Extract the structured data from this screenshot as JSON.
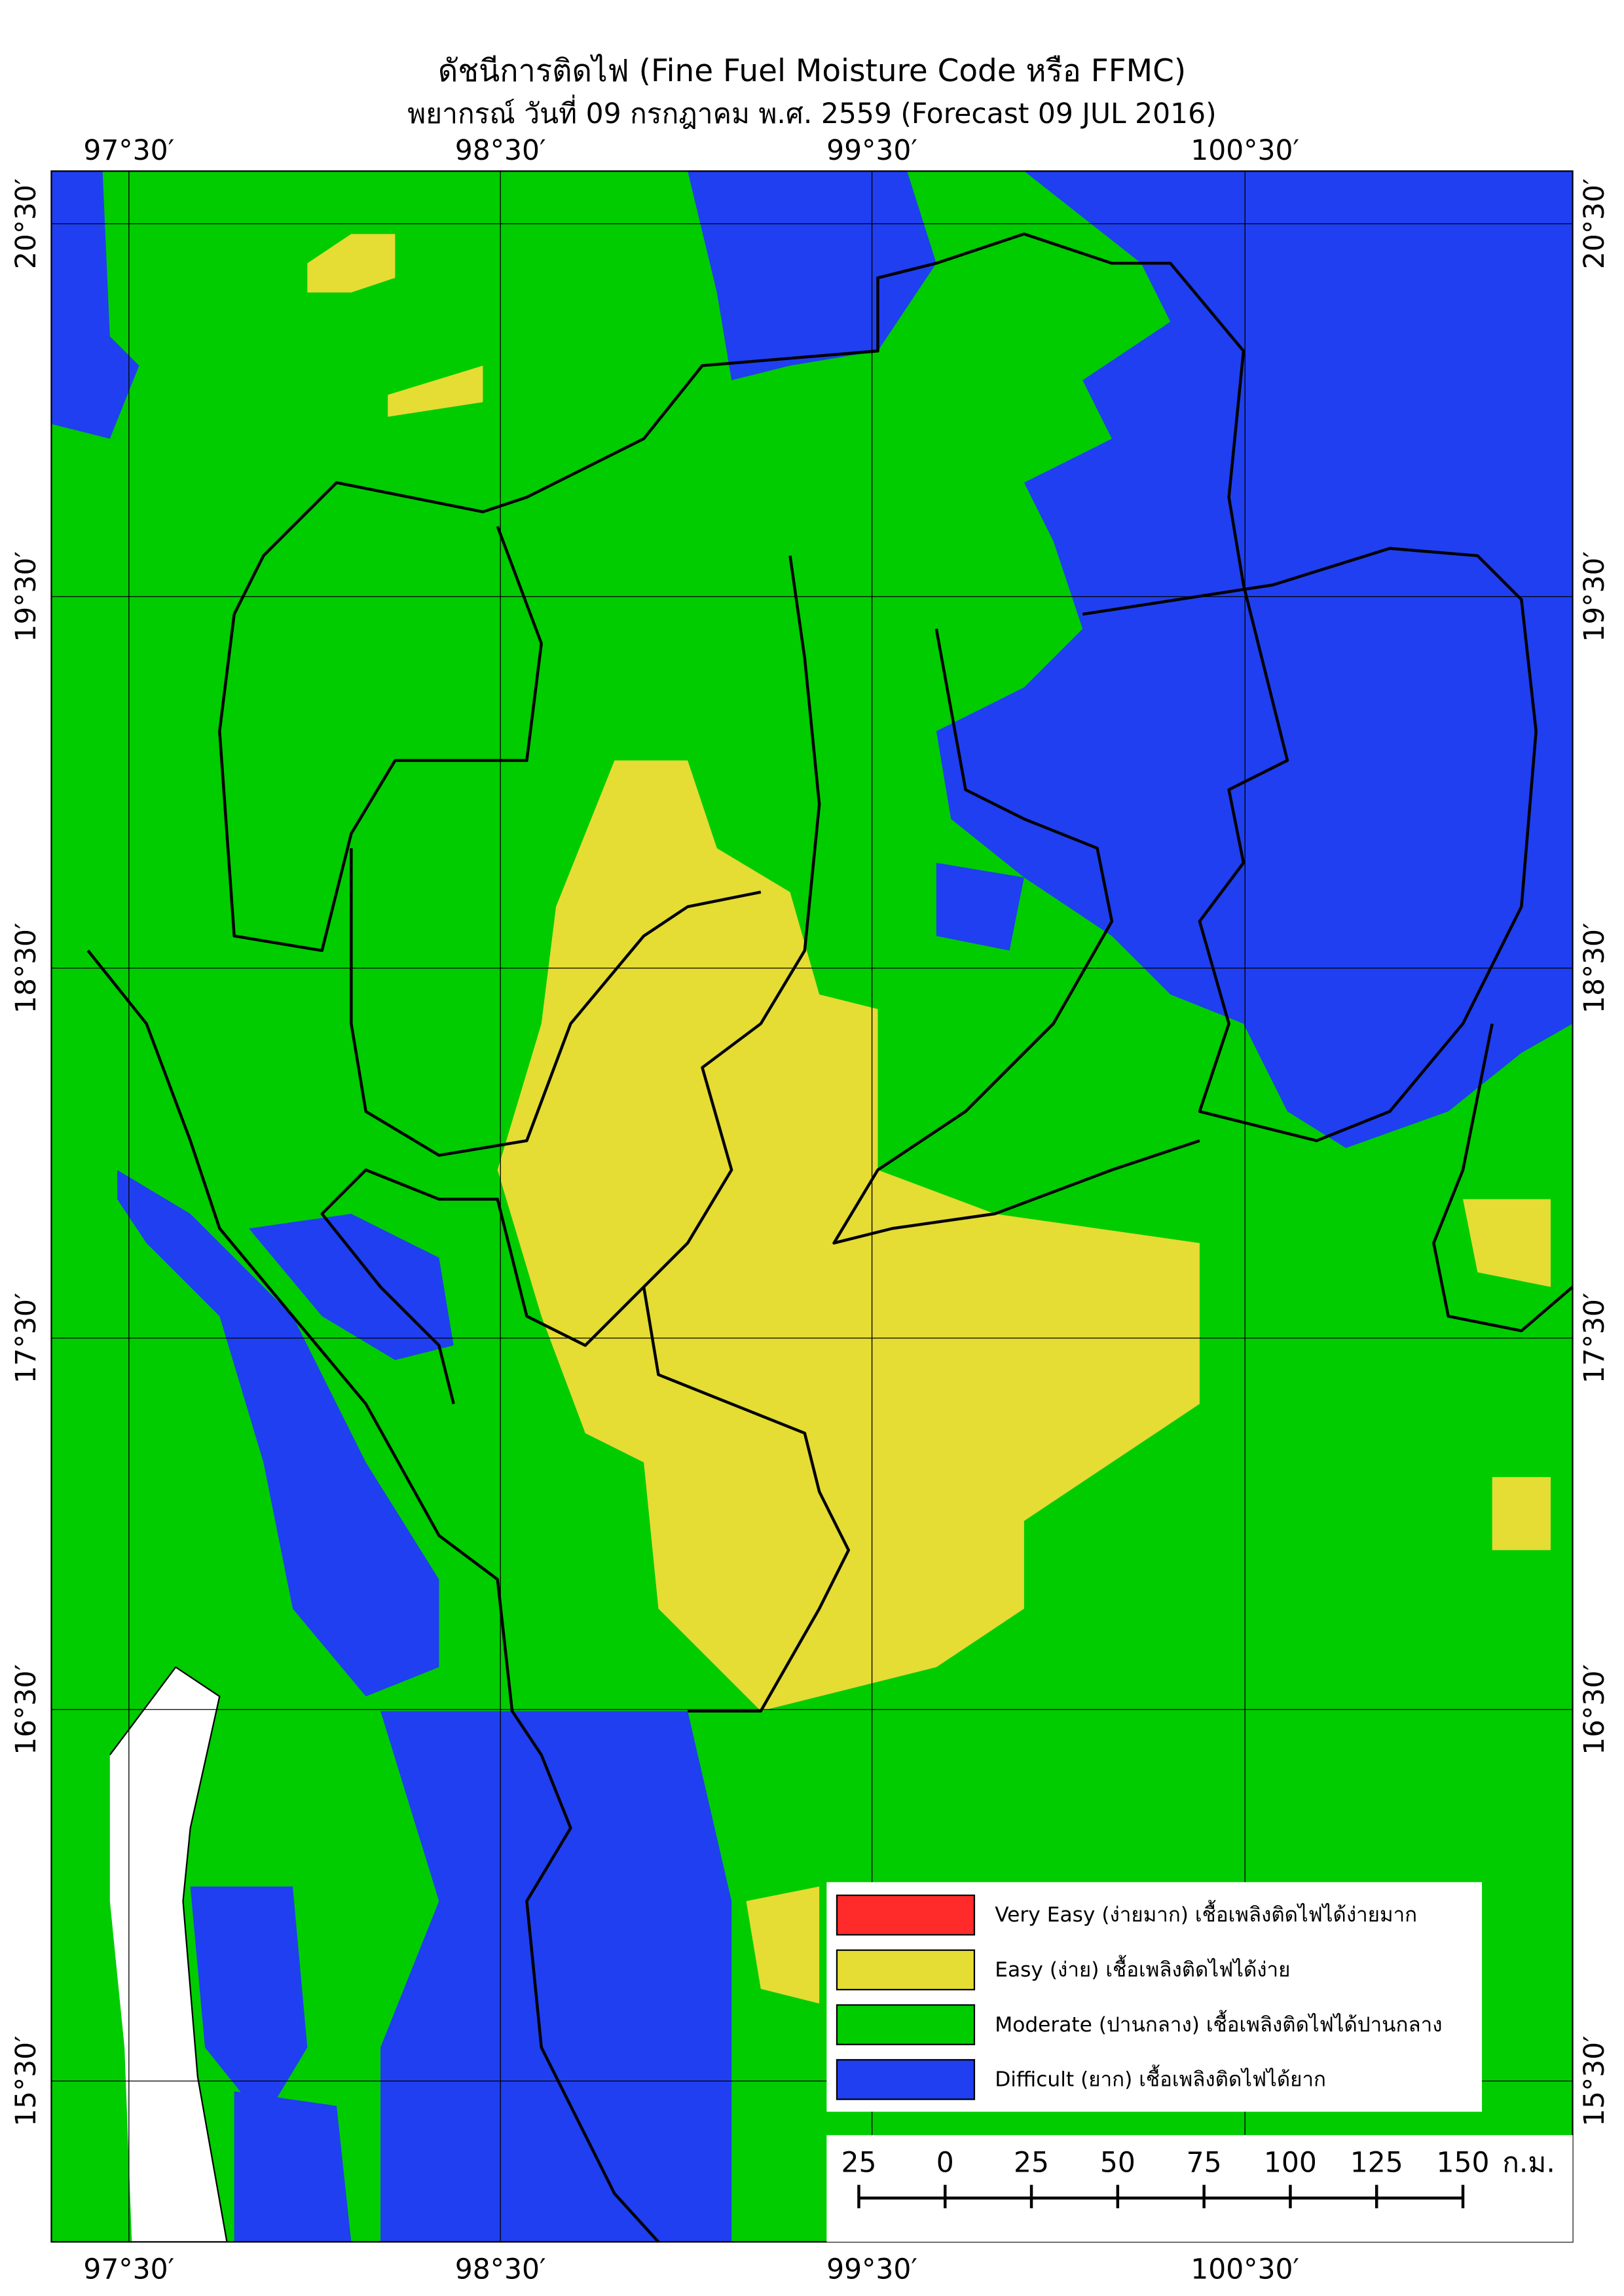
{
  "header": {
    "title": "ดัชนีการติดไฟ (Fine Fuel Moisture Code หรือ FFMC)",
    "subtitle": "พยากรณ์ วันที่ 09 กรกฎาคม พ.ศ. 2559 (Forecast 09 JUL 2016)"
  },
  "map": {
    "longitude_labels": [
      "97°30′",
      "98°30′",
      "99°30′",
      "100°30′"
    ],
    "latitude_labels": [
      "20°30′",
      "19°30′",
      "18°30′",
      "17°30′",
      "16°30′",
      "15°30′"
    ]
  },
  "legend": [
    {
      "label": "Very Easy (ง่ายมาก) เชื้อเพลิงติดไฟได้ง่ายมาก",
      "color": "#ff2a2a"
    },
    {
      "label": "Easy (ง่าย) เชื้อเพลิงติดไฟได้ง่าย",
      "color": "#e5dc34"
    },
    {
      "label": "Moderate (ปานกลาง) เชื้อเพลิงติดไฟได้ปานกลาง",
      "color": "#00cc00"
    },
    {
      "label": "Difficult (ยาก) เชื้อเพลิงติดไฟได้ยาก",
      "color": "#1f3ff0"
    }
  ],
  "scale_bar": {
    "labels": [
      "25",
      "0",
      "25",
      "50",
      "75",
      "100",
      "125",
      "150"
    ],
    "unit": "ก.ม."
  }
}
